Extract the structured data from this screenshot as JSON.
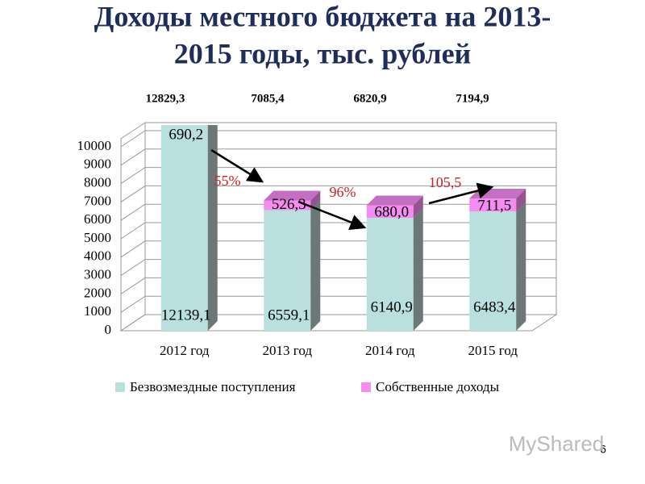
{
  "chart_data": {
    "type": "stacked-bar-3d",
    "title": [
      "Доходы местного бюджета на 2013-",
      "2015 годы, тыс. рублей"
    ],
    "categories": [
      "2012 год",
      "2013 год",
      "2014 год",
      "2015 год"
    ],
    "series": [
      {
        "name": "Безвозмездные поступления",
        "color": "#b9e0df",
        "values": [
          12139.1,
          6559.1,
          6140.9,
          6483.4
        ],
        "value_labels": [
          "12139,1",
          "6559,1",
          "6140,9",
          "6483,4"
        ]
      },
      {
        "name": "Собственные доходы",
        "color": "#f58cf0",
        "values": [
          690.2,
          526.3,
          680.0,
          711.5
        ],
        "value_labels": [
          "690,2",
          "526,3",
          "680,0",
          "711,5"
        ]
      }
    ],
    "totals": [
      12829.3,
      7085.4,
      6820.9,
      7194.9
    ],
    "total_labels": [
      "12829,3",
      "7085,4",
      "6820,9",
      "7194,9"
    ],
    "annotations": [
      "55%",
      "96%",
      "105,5"
    ],
    "ylim": [
      0,
      10000
    ],
    "yticks": [
      0,
      1000,
      2000,
      3000,
      4000,
      5000,
      6000,
      7000,
      8000,
      9000,
      10000
    ],
    "legend": "bottom",
    "page_number": "6",
    "watermark": "MyShared"
  }
}
